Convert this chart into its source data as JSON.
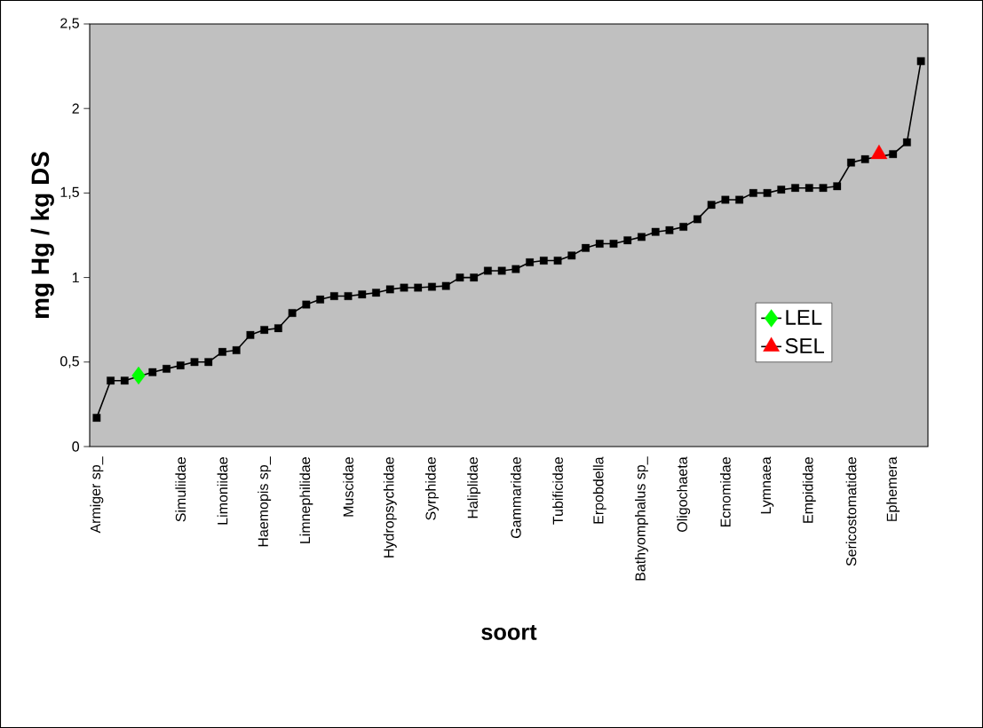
{
  "chart_data": {
    "type": "line",
    "xlabel": "soort",
    "ylabel": "mg Hg / kg DS",
    "categories": [
      "Armiger sp_",
      null,
      null,
      null,
      null,
      null,
      "Simuliidae",
      null,
      null,
      "Limoniidae",
      null,
      null,
      "Haemopis sp_",
      null,
      null,
      "Limnephilidae",
      null,
      null,
      "Muscidae",
      null,
      null,
      "Hydropsychidae",
      null,
      null,
      "Syrphidae",
      null,
      null,
      "Haliplidae",
      null,
      null,
      "Gammaridae",
      null,
      null,
      "Tubificidae",
      null,
      null,
      "Erpobdella",
      null,
      null,
      "Bathyomphalus sp_",
      null,
      null,
      "Oligochaeta",
      null,
      null,
      "Ecnomidae",
      null,
      null,
      "Lymnaea",
      null,
      null,
      "Empididae",
      null,
      null,
      "Sericostomatidae",
      null,
      null,
      "Ephemera",
      null,
      null
    ],
    "series": [
      {
        "color": "#000000",
        "marker": "square",
        "values": [
          0.17,
          0.39,
          0.39,
          null,
          0.44,
          0.46,
          0.48,
          0.5,
          0.5,
          0.56,
          0.57,
          0.66,
          0.69,
          0.7,
          0.79,
          0.84,
          0.87,
          0.89,
          0.89,
          0.9,
          0.91,
          0.93,
          0.94,
          0.94,
          0.945,
          0.95,
          1.0,
          1.0,
          1.04,
          1.04,
          1.05,
          1.09,
          1.1,
          1.1,
          1.13,
          1.175,
          1.2,
          1.2,
          1.22,
          1.24,
          1.27,
          1.28,
          1.3,
          1.345,
          1.43,
          1.46,
          1.46,
          1.5,
          1.5,
          1.52,
          1.53,
          1.53,
          1.53,
          1.54,
          1.68,
          1.7,
          null,
          1.73,
          1.8,
          2.28
        ]
      },
      {
        "name": "LEL",
        "color": "#00ff00",
        "marker": "diamond",
        "values": [
          null,
          null,
          null,
          0.42,
          null,
          null,
          null,
          null,
          null,
          null,
          null,
          null,
          null,
          null,
          null,
          null,
          null,
          null,
          null,
          null,
          null,
          null,
          null,
          null,
          null,
          null,
          null,
          null,
          null,
          null,
          null,
          null,
          null,
          null,
          null,
          null,
          null,
          null,
          null,
          null,
          null,
          null,
          null,
          null,
          null,
          null,
          null,
          null,
          null,
          null,
          null,
          null,
          null,
          null,
          null,
          null,
          null,
          null,
          null,
          null
        ]
      },
      {
        "name": "SEL",
        "color": "#ff0000",
        "marker": "triangle",
        "values": [
          null,
          null,
          null,
          null,
          null,
          null,
          null,
          null,
          null,
          null,
          null,
          null,
          null,
          null,
          null,
          null,
          null,
          null,
          null,
          null,
          null,
          null,
          null,
          null,
          null,
          null,
          null,
          null,
          null,
          null,
          null,
          null,
          null,
          null,
          null,
          null,
          null,
          null,
          null,
          null,
          null,
          null,
          null,
          null,
          null,
          null,
          null,
          null,
          null,
          null,
          null,
          null,
          null,
          null,
          null,
          null,
          1.73,
          null,
          null,
          null
        ]
      }
    ],
    "ylim": [
      0,
      2.5
    ],
    "yticks": [
      0,
      {
        "value": 0.5,
        "label": "0,5"
      },
      1,
      {
        "value": 1.5,
        "label": "1,5"
      },
      2,
      {
        "value": 2.5,
        "label": "2,5"
      }
    ],
    "legend": "right",
    "grid": false
  }
}
